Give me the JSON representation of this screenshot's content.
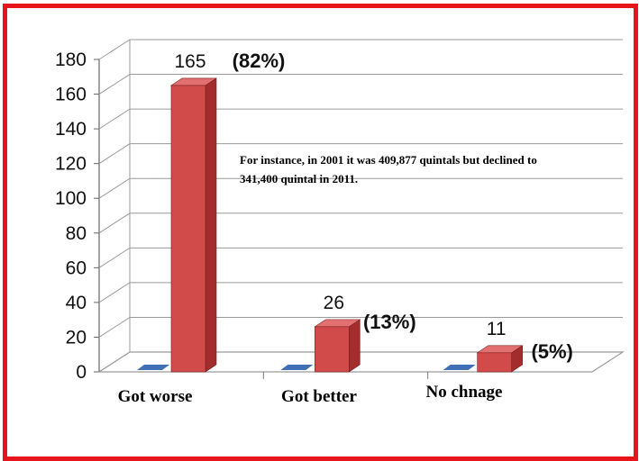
{
  "chart_data": {
    "type": "bar",
    "categories": [
      "Got worse",
      "Got better",
      "No chnage"
    ],
    "series": [
      {
        "values": [
          0,
          0,
          0
        ],
        "color": "#3f6fb5"
      },
      {
        "values": [
          165,
          26,
          11
        ],
        "color": "#d24b4b"
      }
    ],
    "value_labels": [
      "165",
      "26",
      "11"
    ],
    "percent_labels": [
      "(82%)",
      "(13%)",
      "(5%)"
    ],
    "y_ticks": [
      "0",
      "20",
      "40",
      "60",
      "80",
      "100",
      "120",
      "140",
      "160",
      "180"
    ],
    "ylim": [
      0,
      180
    ],
    "grid": true,
    "three_d": true
  },
  "annotation": {
    "line1": "For instance, in 2001 it was 409,877 quintals but declined to",
    "line2": "341,400 quintal in 2011."
  },
  "colors": {
    "frame": "#e8141b",
    "bar_front": "#d24b4b",
    "bar_side": "#a32c2c",
    "bar_top": "#e27070",
    "grid": "#9a9a9a"
  }
}
